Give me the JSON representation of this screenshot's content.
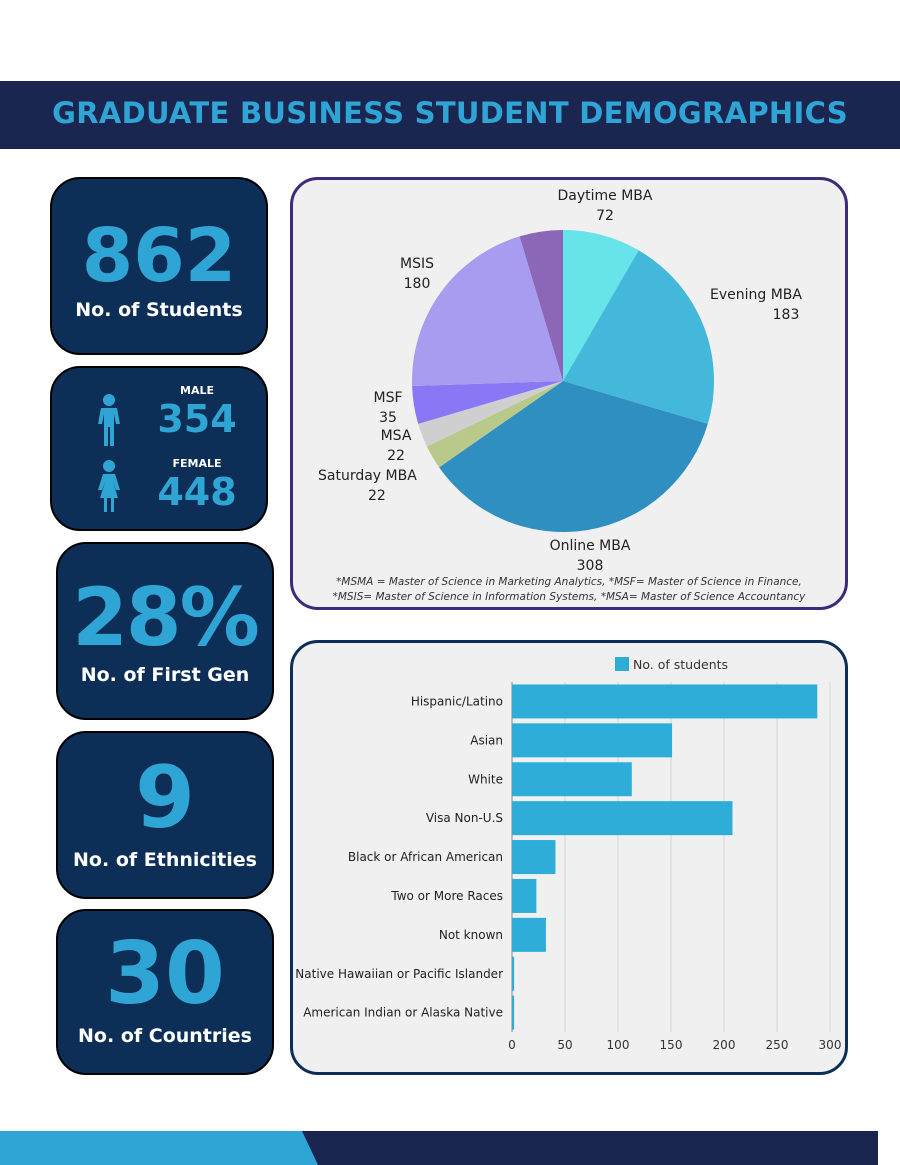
{
  "title": "GRADUATE BUSINESS STUDENT DEMOGRAPHICS",
  "stats": {
    "students": {
      "value": "862",
      "label": "No. of Students"
    },
    "male": {
      "label": "MALE",
      "value": "354"
    },
    "female": {
      "label": "FEMALE",
      "value": "448"
    },
    "first_gen": {
      "value": "28%",
      "label": "No. of First Gen"
    },
    "ethnicities": {
      "value": "9",
      "label": "No. of Ethnicities"
    },
    "countries": {
      "value": "30",
      "label": "No. of Countries"
    }
  },
  "colors": {
    "navy": "#1a2550",
    "card": "#0d2f57",
    "accent": "#2fa5d6",
    "pie_border": "#3d2a7a",
    "bar_border": "#0d2f57"
  },
  "icons": {
    "male": "male-person-icon",
    "female": "female-person-icon"
  },
  "chart_data": [
    {
      "type": "pie",
      "labels": [
        "Daytime MBA",
        "Evening MBA",
        "Online MBA",
        "Saturday MBA",
        "MSA",
        "MSF",
        "MSIS",
        ""
      ],
      "values": [
        72,
        183,
        308,
        22,
        22,
        35,
        180,
        40
      ],
      "value_labels": [
        "72",
        "183",
        "308",
        "22",
        "22",
        "35",
        "180",
        ""
      ],
      "colors": [
        "#67e3ea",
        "#44b8da",
        "#2f8fc0",
        "#b9c98a",
        "#cfcfcf",
        "#8878f5",
        "#a89cf0",
        "#8c67b8"
      ],
      "notes": [
        "*MSMA = Master of Science in Marketing Analytics, *MSF= Master of Science in Finance,",
        "*MSIS= Master of Science  in Information Systems, *MSA= Master of Science  Accountancy"
      ]
    },
    {
      "type": "bar",
      "orientation": "horizontal",
      "categories": [
        "Hispanic/Latino",
        "Asian",
        "White",
        "Visa Non-U.S",
        "Black or African American",
        "Two or More Races",
        "Not known",
        "Native Hawaiian or Pacific Islander",
        "American Indian or Alaska Native"
      ],
      "series": [
        {
          "name": "No. of students",
          "values": [
            288,
            151,
            113,
            208,
            41,
            23,
            32,
            2,
            2
          ],
          "color": "#2fadd9"
        }
      ],
      "xlim": [
        0,
        300
      ],
      "xticks": [
        0,
        50,
        100,
        150,
        200,
        250,
        300
      ],
      "legend": "top-center",
      "grid": true
    }
  ]
}
